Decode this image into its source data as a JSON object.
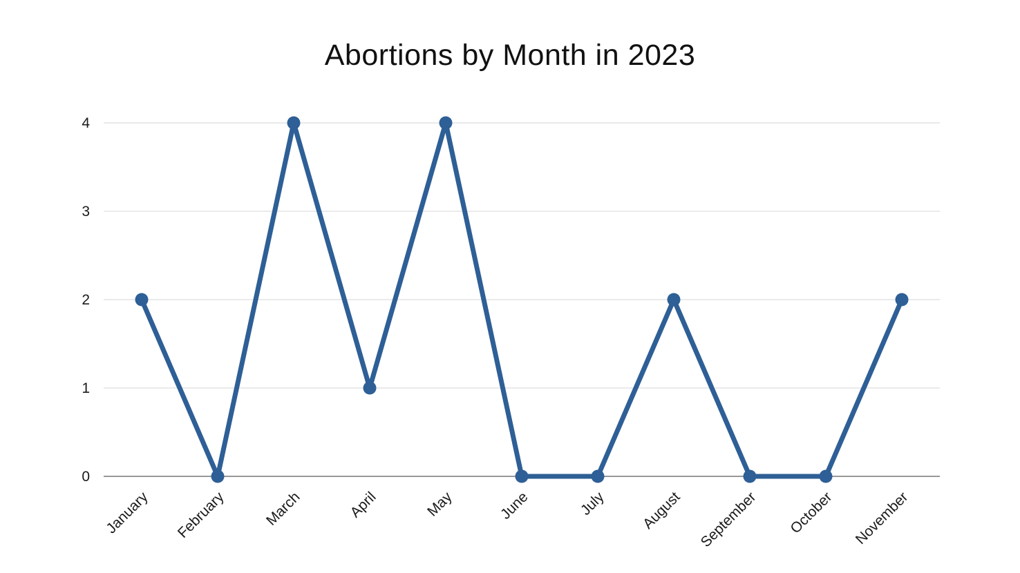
{
  "chart_data": {
    "type": "line",
    "title": "Abortions by Month in 2023",
    "categories": [
      "January",
      "February",
      "March",
      "April",
      "May",
      "June",
      "July",
      "August",
      "September",
      "October",
      "November"
    ],
    "values": [
      2,
      0,
      4,
      1,
      4,
      0,
      0,
      2,
      0,
      0,
      2
    ],
    "xlabel": "",
    "ylabel": "",
    "ylim": [
      0,
      4
    ],
    "yticks": [
      0,
      1,
      2,
      3,
      4
    ],
    "grid": true,
    "legend": "none",
    "x_label_rotation_deg": -45,
    "colors": {
      "line": "#2e5f96",
      "marker": "#2e5f96",
      "gridline": "#d6d6d6",
      "axis_baseline": "#757575",
      "tick_text": "#1a1a1a",
      "title_text": "#111111",
      "background": "#ffffff"
    }
  }
}
